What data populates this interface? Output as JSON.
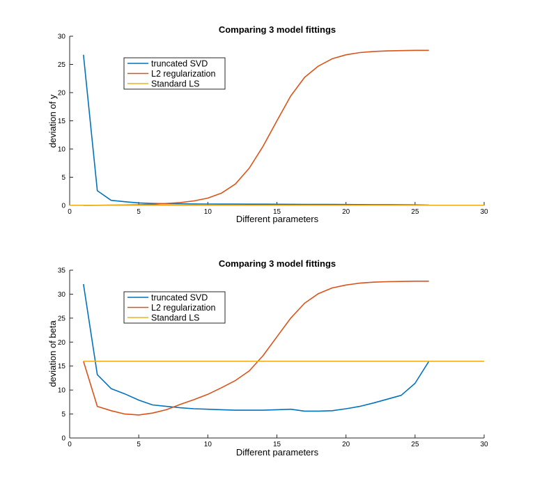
{
  "colors": {
    "truncated_svd": "#0072BD",
    "l2_regularization": "#D95319",
    "standard_ls": "#EDB120",
    "axes": "#262626",
    "background": "#ffffff"
  },
  "chart_data": [
    {
      "type": "line",
      "title": "Comparing 3 model fittings",
      "xlabel": "Different parameters",
      "ylabel": "deviation of y",
      "xlim": [
        0,
        30
      ],
      "ylim": [
        0,
        30
      ],
      "xticks": [
        "0",
        "5",
        "10",
        "15",
        "20",
        "25",
        "30"
      ],
      "yticks": [
        "0",
        "5",
        "10",
        "15",
        "20",
        "25",
        "30"
      ],
      "grid": false,
      "legend_position": "top-left",
      "series": [
        {
          "name": "truncated SVD",
          "color_key": "truncated_svd",
          "x": [
            1,
            2,
            3,
            4,
            5,
            6,
            7,
            8,
            9,
            10,
            11,
            12,
            13,
            14,
            15,
            16,
            17,
            18,
            19,
            20,
            21,
            22,
            23,
            24,
            25,
            26
          ],
          "y": [
            26.7,
            2.6,
            0.9,
            0.65,
            0.45,
            0.35,
            0.3,
            0.28,
            0.26,
            0.25,
            0.24,
            0.23,
            0.22,
            0.22,
            0.21,
            0.2,
            0.19,
            0.18,
            0.17,
            0.16,
            0.15,
            0.14,
            0.13,
            0.12,
            0.1,
            0.05
          ]
        },
        {
          "name": "L2 regularization",
          "color_key": "l2_regularization",
          "x": [
            1,
            2,
            3,
            4,
            5,
            6,
            7,
            8,
            9,
            10,
            11,
            12,
            13,
            14,
            15,
            16,
            17,
            18,
            19,
            20,
            21,
            22,
            23,
            24,
            25,
            26
          ],
          "y": [
            0.0,
            0.02,
            0.05,
            0.08,
            0.12,
            0.2,
            0.35,
            0.5,
            0.8,
            1.3,
            2.2,
            3.8,
            6.6,
            10.5,
            15.0,
            19.4,
            22.7,
            24.7,
            26.0,
            26.7,
            27.1,
            27.3,
            27.4,
            27.45,
            27.5,
            27.5
          ]
        },
        {
          "name": "Standard LS",
          "color_key": "standard_ls",
          "x": [
            0,
            30
          ],
          "y": [
            0.02,
            0.02
          ]
        }
      ]
    },
    {
      "type": "line",
      "title": "Comparing 3 model fittings",
      "xlabel": "Different parameters",
      "ylabel": "deviation of beta",
      "xlim": [
        0,
        30
      ],
      "ylim": [
        0,
        35
      ],
      "xticks": [
        "0",
        "5",
        "10",
        "15",
        "20",
        "25",
        "30"
      ],
      "yticks": [
        "0",
        "5",
        "10",
        "15",
        "20",
        "25",
        "30",
        "35"
      ],
      "grid": false,
      "legend_position": "top-left",
      "series": [
        {
          "name": "truncated SVD",
          "color_key": "truncated_svd",
          "x": [
            1,
            2,
            3,
            4,
            5,
            6,
            7,
            8,
            9,
            10,
            11,
            12,
            13,
            14,
            15,
            16,
            17,
            18,
            19,
            20,
            21,
            22,
            23,
            24,
            25,
            26
          ],
          "y": [
            32.1,
            13.2,
            10.3,
            9.2,
            7.9,
            6.9,
            6.6,
            6.3,
            6.1,
            6.0,
            5.9,
            5.8,
            5.8,
            5.8,
            5.9,
            6.0,
            5.6,
            5.6,
            5.7,
            6.1,
            6.6,
            7.3,
            8.1,
            8.9,
            11.4,
            16.0
          ]
        },
        {
          "name": "L2 regularization",
          "color_key": "l2_regularization",
          "x": [
            1,
            2,
            3,
            4,
            5,
            6,
            7,
            8,
            9,
            10,
            11,
            12,
            13,
            14,
            15,
            16,
            17,
            18,
            19,
            20,
            21,
            22,
            23,
            24,
            25,
            26
          ],
          "y": [
            16.0,
            6.6,
            5.7,
            5.0,
            4.8,
            5.2,
            5.9,
            7.0,
            8.0,
            9.1,
            10.5,
            12.0,
            14.0,
            17.2,
            21.1,
            25.0,
            28.1,
            30.1,
            31.3,
            31.9,
            32.3,
            32.5,
            32.6,
            32.65,
            32.7,
            32.7
          ]
        },
        {
          "name": "Standard LS",
          "color_key": "standard_ls",
          "x": [
            1,
            30
          ],
          "y": [
            16.0,
            16.0
          ]
        }
      ]
    }
  ]
}
